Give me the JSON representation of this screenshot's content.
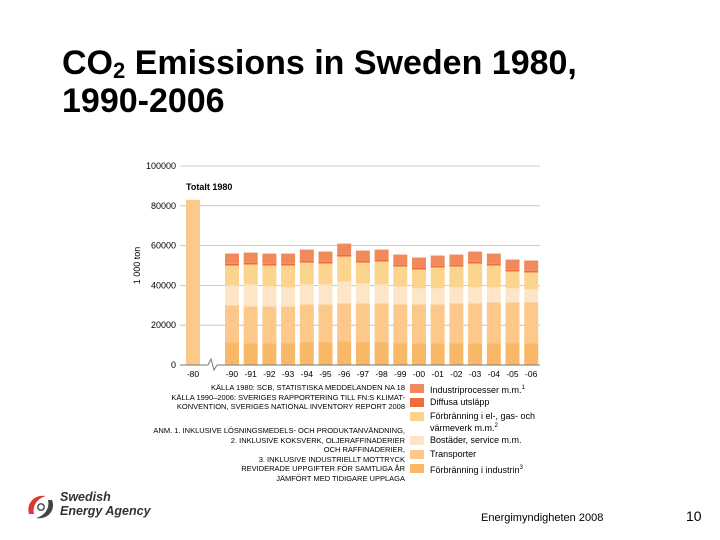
{
  "slide": {
    "title_prefix": "CO",
    "title_sub": "2",
    "title_suffix": " Emissions in Sweden 1980,",
    "title_line2": "1990-2006",
    "footer": "Energimyndigheten 2008",
    "page_number": "10",
    "logo_line1": "Swedish",
    "logo_line2": "Energy Agency"
  },
  "colors": {
    "industry_process": "#f08a5c",
    "diffuse": "#f26c3a",
    "heat_power": "#fbd48e",
    "housing": "#fde6c8",
    "transport": "#fcc98a",
    "industry_combustion": "#f9b868",
    "axis": "#777777",
    "grid": "#bbbbbb"
  },
  "chart_data": {
    "type": "bar",
    "stacked": true,
    "ylabel": "1 000 ton",
    "ylim": [
      0,
      100000
    ],
    "yticks": [
      "0",
      "20000",
      "40000",
      "60000",
      "80000",
      "100000"
    ],
    "grid": true,
    "annotation": "Totalt 1980",
    "categories": [
      "-80",
      "-90",
      "-91",
      "-92",
      "-93",
      "-94",
      "-95",
      "-96",
      "-97",
      "-98",
      "-99",
      "-00",
      "-01",
      "-02",
      "-03",
      "-04",
      "-05",
      "-06"
    ],
    "total_1980": 83000,
    "series": [
      {
        "name": "Förbränning i industrin",
        "color_key": "industry_combustion",
        "values": [
          null,
          11500,
          11000,
          11000,
          11000,
          11500,
          11500,
          12000,
          11500,
          11500,
          11000,
          11000,
          11000,
          11000,
          11000,
          11000,
          11000,
          11000
        ]
      },
      {
        "name": "Transporter",
        "color_key": "transport",
        "values": [
          null,
          18500,
          18500,
          18500,
          18500,
          19000,
          19000,
          19000,
          19500,
          19500,
          19500,
          19500,
          19500,
          20000,
          20000,
          20500,
          20500,
          20500
        ]
      },
      {
        "name": "Bostäder, service m.m.",
        "color_key": "housing",
        "values": [
          null,
          10000,
          11000,
          10000,
          9500,
          10000,
          10000,
          11000,
          10000,
          9500,
          9000,
          8000,
          8000,
          8000,
          8000,
          7500,
          7000,
          6500
        ]
      },
      {
        "name": "Förbränning i el-, gas- och värmeverk m.m.",
        "color_key": "heat_power",
        "values": [
          null,
          10000,
          10000,
          10500,
          11000,
          11000,
          10500,
          12500,
          10500,
          11500,
          10000,
          9500,
          10500,
          10500,
          12000,
          11000,
          8500,
          8500
        ]
      },
      {
        "name": "Diffusa utsläpp",
        "color_key": "diffuse",
        "values": [
          null,
          800,
          800,
          800,
          800,
          800,
          800,
          800,
          800,
          800,
          800,
          800,
          800,
          800,
          800,
          800,
          800,
          800
        ]
      },
      {
        "name": "Industriprocesser m.m.",
        "color_key": "industry_process",
        "values": [
          null,
          5200,
          5200,
          5200,
          5200,
          5700,
          5200,
          5700,
          5200,
          5200,
          5200,
          5200,
          5200,
          5200,
          5200,
          5200,
          5200,
          5200
        ]
      }
    ]
  },
  "sources": [
    "KÄLLA 1980: SCB, STATISTISKA MEDDELANDEN NA 18",
    "KÄLLA 1990–2006: SVERIGES RAPPORTERING TILL FN:S KLIMAT-",
    "KONVENTION, SVERIGES NATIONAL INVENTORY REPORT 2008"
  ],
  "notes": [
    "ANM. 1. INKLUSIVE LÖSNINGSMEDELS- OCH PRODUKTANVÄNDNING,",
    "2. INKLUSIVE KOKSVERK, OLJERAFFINADERIER",
    "OCH RAFFINADERIER,",
    "3. INKLUSIVE INDUSTRIELLT MOTTRYCK",
    "REVIDERADE UPPGIFTER FÖR SAMTLIGA ÅR",
    "JÄMFÖRT MED TIDIGARE UPPLAGA"
  ],
  "legend": [
    {
      "label": "Industriprocesser m.m.",
      "sup": "1",
      "color_key": "industry_process"
    },
    {
      "label": "Diffusa utsläpp",
      "sup": "",
      "color_key": "diffuse"
    },
    {
      "label": "Förbränning i el-, gas- och värmeverk m.m.",
      "sup": "2",
      "color_key": "heat_power"
    },
    {
      "label": "Bostäder, service m.m.",
      "sup": "",
      "color_key": "housing"
    },
    {
      "label": "Transporter",
      "sup": "",
      "color_key": "transport"
    },
    {
      "label": "Förbränning i industrin",
      "sup": "3",
      "color_key": "industry_combustion"
    }
  ]
}
